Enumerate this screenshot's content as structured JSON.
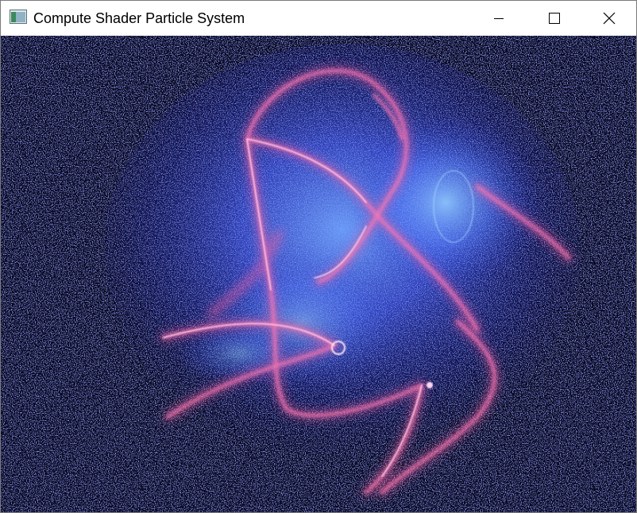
{
  "window": {
    "title": "Compute Shader Particle System"
  },
  "titlebar": {
    "app_icon": "window-app-icon",
    "buttons": [
      {
        "name": "minimize",
        "icon": "minimize-icon"
      },
      {
        "name": "maximize",
        "icon": "maximize-icon"
      },
      {
        "name": "close",
        "icon": "close-icon"
      }
    ]
  },
  "colors": {
    "background": "#05051a",
    "particle_blue": "#4a5cff",
    "glow_blue": "#6fa0ff",
    "trail_pink": "#ff6fa8",
    "trail_core": "#ffd6ee"
  }
}
